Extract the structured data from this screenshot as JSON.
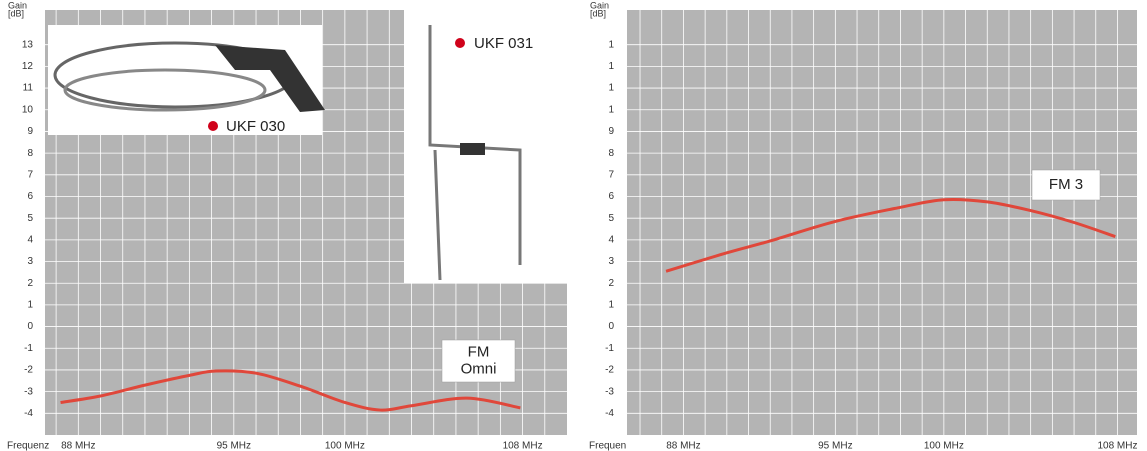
{
  "chart_data": [
    {
      "type": "line",
      "y_label_lines": [
        "Gain",
        "[dB]"
      ],
      "x_label": "Frequenz",
      "xlim": [
        86.5,
        110
      ],
      "ylim": [
        -5,
        14.6
      ],
      "xticks": [
        {
          "value": 88,
          "label": "88 MHz"
        },
        {
          "value": 95,
          "label": "95 MHz"
        },
        {
          "value": 100,
          "label": "100 MHz"
        },
        {
          "value": 108,
          "label": "108 MHz"
        }
      ],
      "xgrid": [
        87,
        88,
        89,
        90,
        91,
        92,
        93,
        94,
        95,
        96,
        97,
        98,
        99,
        100,
        101,
        102,
        103,
        104,
        105,
        106,
        107,
        108,
        109
      ],
      "yticks": [
        13,
        12,
        11,
        10,
        9,
        8,
        7,
        6,
        5,
        4,
        3,
        2,
        1,
        0,
        -1,
        -2,
        -3,
        -4
      ],
      "grid": true,
      "series": [
        {
          "color": "#e0473a",
          "x": [
            87.2,
            89,
            91,
            93,
            94.2,
            96,
            98,
            100,
            101.6,
            103,
            105.5,
            107.9
          ],
          "values": [
            -3.5,
            -3.2,
            -2.7,
            -2.25,
            -2.05,
            -2.15,
            -2.75,
            -3.5,
            -3.85,
            -3.65,
            -3.3,
            -3.75
          ]
        }
      ],
      "annotation_lines": [
        "FM",
        "Omni"
      ],
      "product_labels": [
        "UKF 030",
        "UKF 031"
      ]
    },
    {
      "type": "line",
      "y_label_lines": [
        "Gain",
        "[dB]"
      ],
      "x_label": "Frequen",
      "xlim": [
        85.4,
        108.9
      ],
      "ylim": [
        -5,
        14.6
      ],
      "xticks": [
        {
          "value": 88,
          "label": "88 MHz"
        },
        {
          "value": 95,
          "label": "95 MHz"
        },
        {
          "value": 100,
          "label": "100 MHz"
        },
        {
          "value": 108,
          "label": "108 MHz"
        }
      ],
      "xgrid": [
        86,
        87,
        88,
        89,
        90,
        91,
        92,
        93,
        94,
        95,
        96,
        97,
        98,
        99,
        100,
        101,
        102,
        103,
        104,
        105,
        106,
        107,
        108
      ],
      "yticks": [
        {
          "value": 13,
          "label": "1"
        },
        {
          "value": 12,
          "label": "1"
        },
        {
          "value": 11,
          "label": "1"
        },
        {
          "value": 10,
          "label": "1"
        },
        9,
        8,
        7,
        6,
        5,
        4,
        3,
        2,
        1,
        0,
        -1,
        -2,
        -3,
        -4
      ],
      "grid": true,
      "series": [
        {
          "color": "#e0473a",
          "x": [
            87.2,
            90,
            92,
            95,
            98,
            100,
            102,
            104,
            106,
            107.9
          ],
          "values": [
            2.55,
            3.4,
            3.95,
            4.85,
            5.5,
            5.85,
            5.75,
            5.35,
            4.8,
            4.15
          ]
        }
      ],
      "annotation_lines": [
        "FM 3"
      ]
    }
  ]
}
